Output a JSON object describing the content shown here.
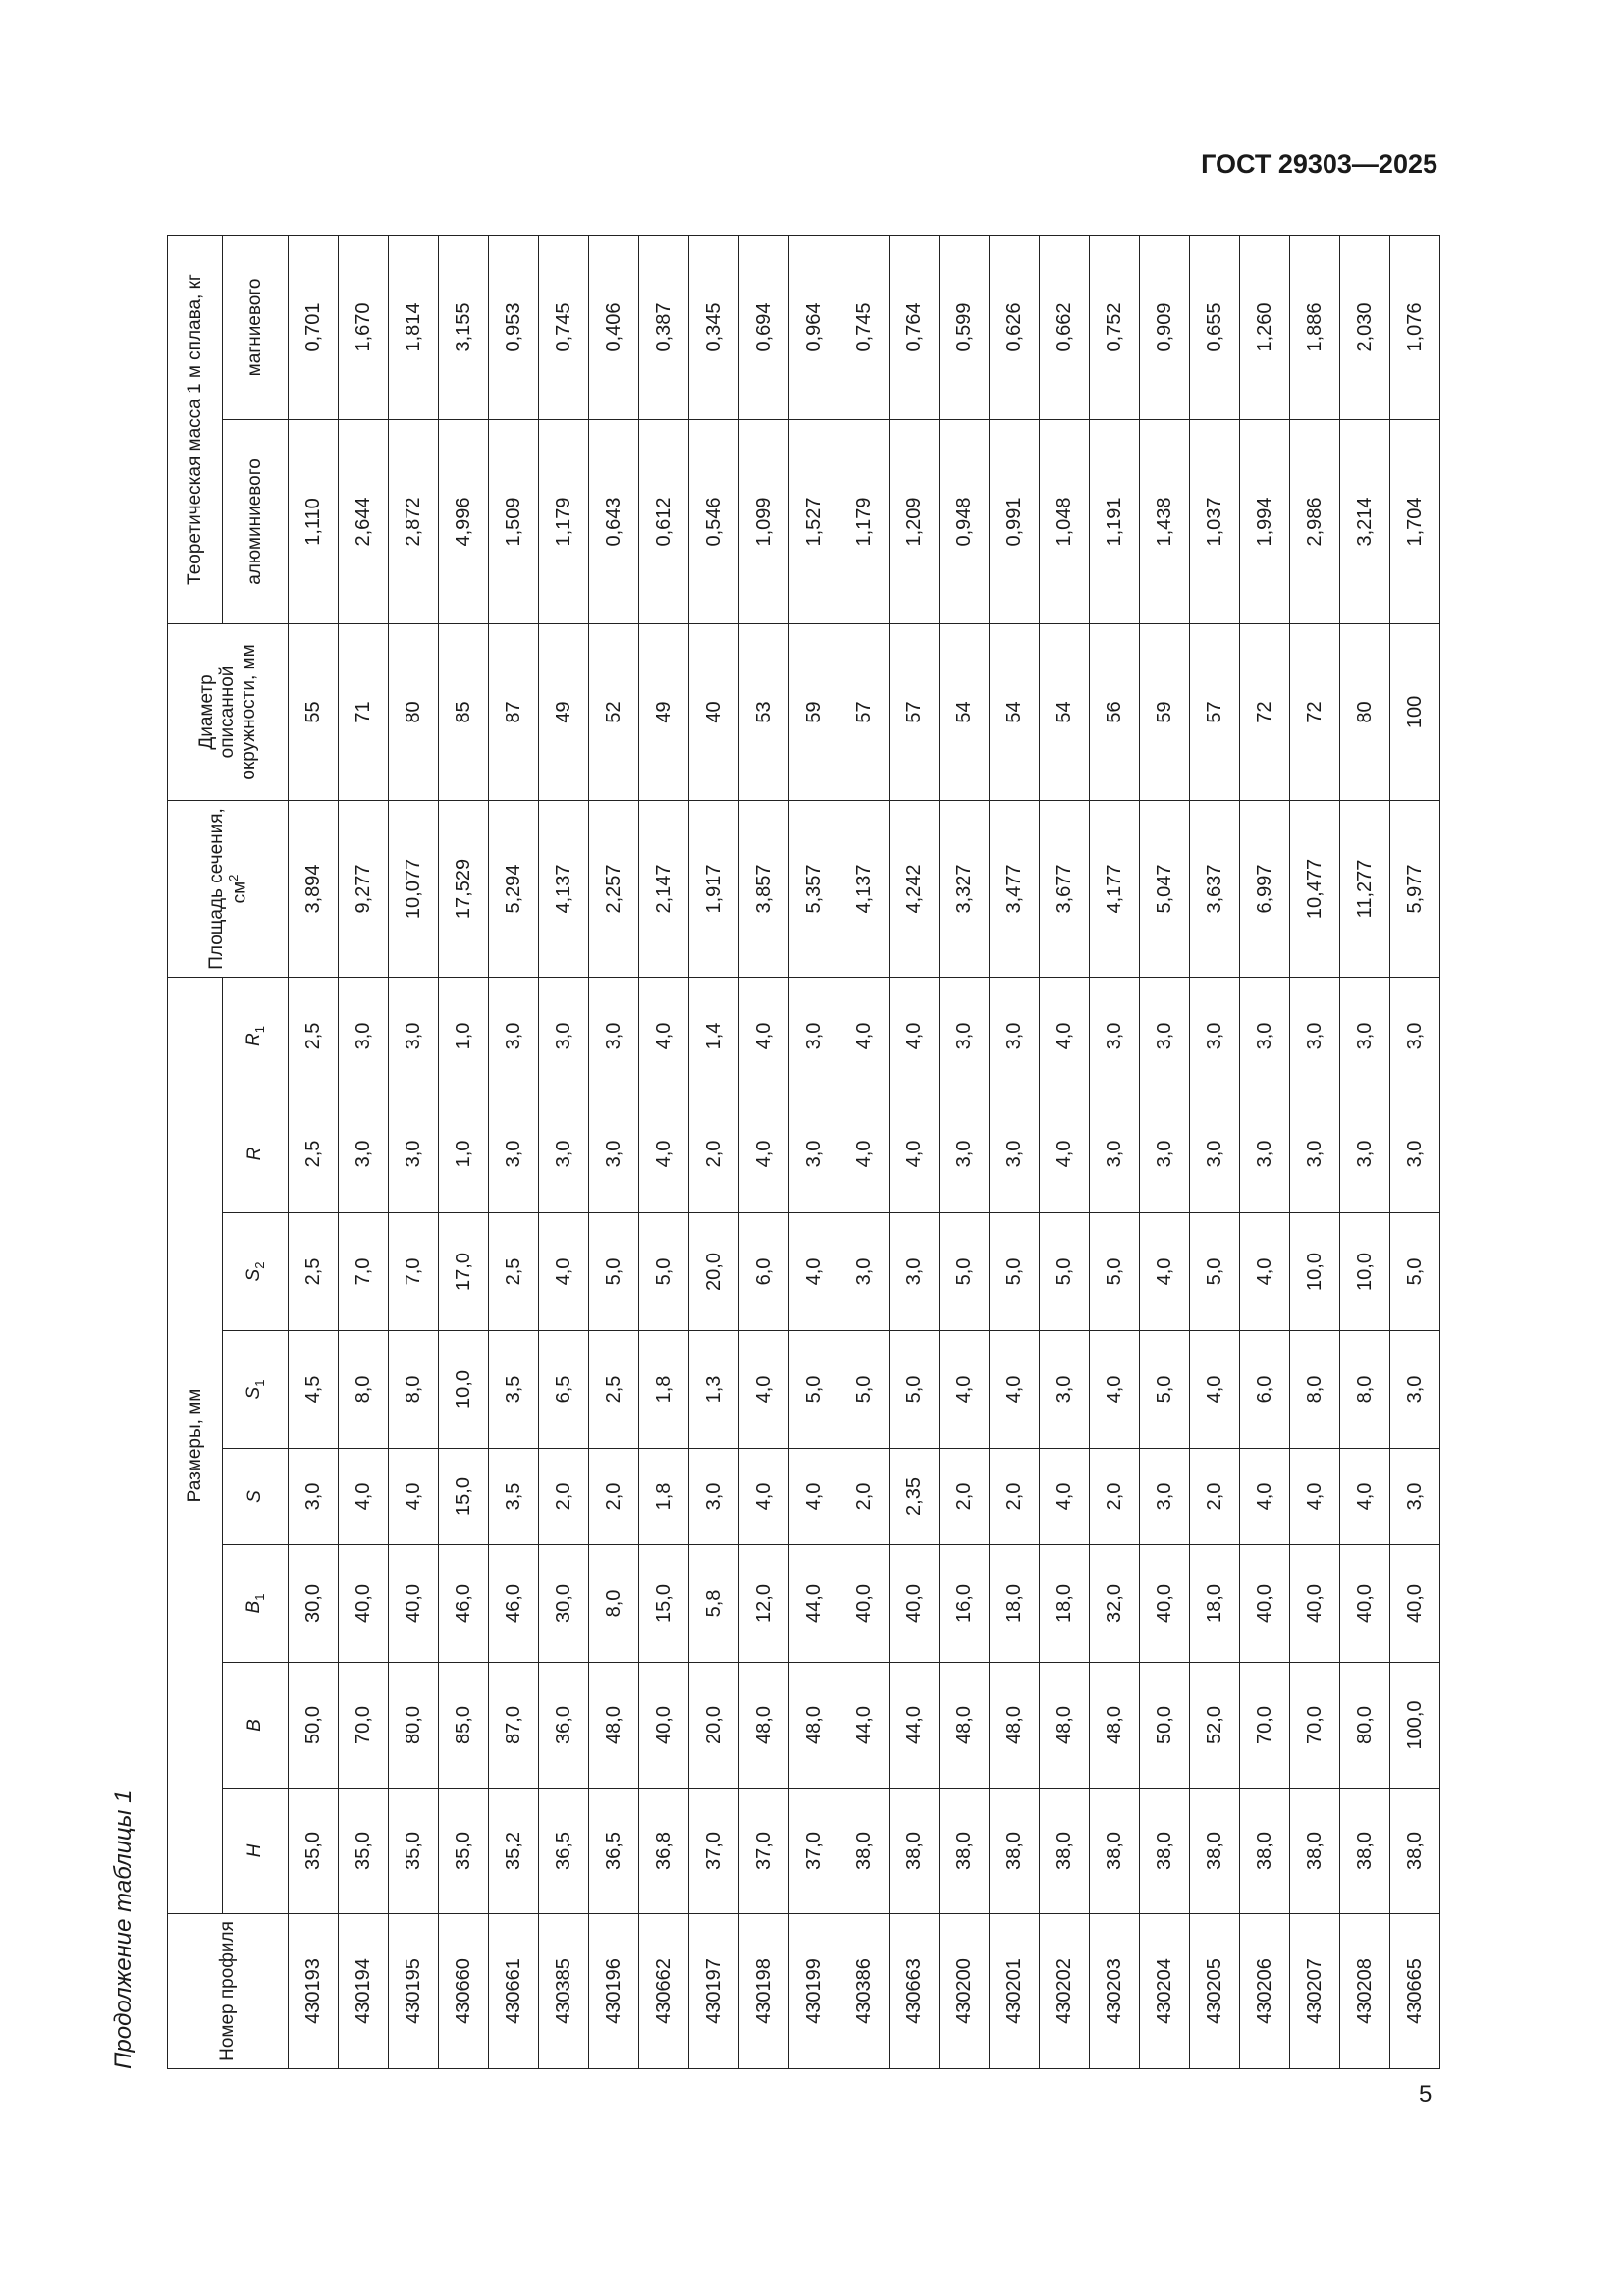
{
  "header": {
    "standard": "ГОСТ 29303—2025"
  },
  "caption": "Продолжение таблицы 1",
  "table": {
    "columns": {
      "profile": "Номер профиля",
      "dimensions": "Размеры, мм",
      "dims": [
        {
          "symbol": "H"
        },
        {
          "symbol": "B"
        },
        {
          "symbol": "B",
          "sub": "1"
        },
        {
          "symbol": "S"
        },
        {
          "symbol": "S",
          "sub": "1"
        },
        {
          "symbol": "S",
          "sub": "2"
        },
        {
          "symbol": "R"
        },
        {
          "symbol": "R",
          "sub": "1"
        }
      ],
      "area": {
        "text": "Площадь сечения, см",
        "sup": "2"
      },
      "diameter": "Диаметр описанной окружности, мм",
      "mass": "Теоретическая масса 1 м сплава, кг",
      "aluminum": "алюминиевого",
      "magnesium": "магниевого"
    },
    "rows": [
      [
        "430193",
        "35,0",
        "50,0",
        "30,0",
        "3,0",
        "4,5",
        "2,5",
        "2,5",
        "2,5",
        "3,894",
        "55",
        "1,110",
        "0,701"
      ],
      [
        "430194",
        "35,0",
        "70,0",
        "40,0",
        "4,0",
        "8,0",
        "7,0",
        "3,0",
        "3,0",
        "9,277",
        "71",
        "2,644",
        "1,670"
      ],
      [
        "430195",
        "35,0",
        "80,0",
        "40,0",
        "4,0",
        "8,0",
        "7,0",
        "3,0",
        "3,0",
        "10,077",
        "80",
        "2,872",
        "1,814"
      ],
      [
        "430660",
        "35,0",
        "85,0",
        "46,0",
        "15,0",
        "10,0",
        "17,0",
        "1,0",
        "1,0",
        "17,529",
        "85",
        "4,996",
        "3,155"
      ],
      [
        "430661",
        "35,2",
        "87,0",
        "46,0",
        "3,5",
        "3,5",
        "2,5",
        "3,0",
        "3,0",
        "5,294",
        "87",
        "1,509",
        "0,953"
      ],
      [
        "430385",
        "36,5",
        "36,0",
        "30,0",
        "2,0",
        "6,5",
        "4,0",
        "3,0",
        "3,0",
        "4,137",
        "49",
        "1,179",
        "0,745"
      ],
      [
        "430196",
        "36,5",
        "48,0",
        "8,0",
        "2,0",
        "2,5",
        "5,0",
        "3,0",
        "3,0",
        "2,257",
        "52",
        "0,643",
        "0,406"
      ],
      [
        "430662",
        "36,8",
        "40,0",
        "15,0",
        "1,8",
        "1,8",
        "5,0",
        "4,0",
        "4,0",
        "2,147",
        "49",
        "0,612",
        "0,387"
      ],
      [
        "430197",
        "37,0",
        "20,0",
        "5,8",
        "3,0",
        "1,3",
        "20,0",
        "2,0",
        "1,4",
        "1,917",
        "40",
        "0,546",
        "0,345"
      ],
      [
        "430198",
        "37,0",
        "48,0",
        "12,0",
        "4,0",
        "4,0",
        "6,0",
        "4,0",
        "4,0",
        "3,857",
        "53",
        "1,099",
        "0,694"
      ],
      [
        "430199",
        "37,0",
        "48,0",
        "44,0",
        "4,0",
        "5,0",
        "4,0",
        "3,0",
        "3,0",
        "5,357",
        "59",
        "1,527",
        "0,964"
      ],
      [
        "430386",
        "38,0",
        "44,0",
        "40,0",
        "2,0",
        "5,0",
        "3,0",
        "4,0",
        "4,0",
        "4,137",
        "57",
        "1,179",
        "0,745"
      ],
      [
        "430663",
        "38,0",
        "44,0",
        "40,0",
        "2,35",
        "5,0",
        "3,0",
        "4,0",
        "4,0",
        "4,242",
        "57",
        "1,209",
        "0,764"
      ],
      [
        "430200",
        "38,0",
        "48,0",
        "16,0",
        "2,0",
        "4,0",
        "5,0",
        "3,0",
        "3,0",
        "3,327",
        "54",
        "0,948",
        "0,599"
      ],
      [
        "430201",
        "38,0",
        "48,0",
        "18,0",
        "2,0",
        "4,0",
        "5,0",
        "3,0",
        "3,0",
        "3,477",
        "54",
        "0,991",
        "0,626"
      ],
      [
        "430202",
        "38,0",
        "48,0",
        "18,0",
        "4,0",
        "3,0",
        "5,0",
        "4,0",
        "4,0",
        "3,677",
        "54",
        "1,048",
        "0,662"
      ],
      [
        "430203",
        "38,0",
        "48,0",
        "32,0",
        "2,0",
        "4,0",
        "5,0",
        "3,0",
        "3,0",
        "4,177",
        "56",
        "1,191",
        "0,752"
      ],
      [
        "430204",
        "38,0",
        "50,0",
        "40,0",
        "3,0",
        "5,0",
        "4,0",
        "3,0",
        "3,0",
        "5,047",
        "59",
        "1,438",
        "0,909"
      ],
      [
        "430205",
        "38,0",
        "52,0",
        "18,0",
        "2,0",
        "4,0",
        "5,0",
        "3,0",
        "3,0",
        "3,637",
        "57",
        "1,037",
        "0,655"
      ],
      [
        "430206",
        "38,0",
        "70,0",
        "40,0",
        "4,0",
        "6,0",
        "4,0",
        "3,0",
        "3,0",
        "6,997",
        "72",
        "1,994",
        "1,260"
      ],
      [
        "430207",
        "38,0",
        "70,0",
        "40,0",
        "4,0",
        "8,0",
        "10,0",
        "3,0",
        "3,0",
        "10,477",
        "72",
        "2,986",
        "1,886"
      ],
      [
        "430208",
        "38,0",
        "80,0",
        "40,0",
        "4,0",
        "8,0",
        "10,0",
        "3,0",
        "3,0",
        "11,277",
        "80",
        "3,214",
        "2,030"
      ],
      [
        "430665",
        "38,0",
        "100,0",
        "40,0",
        "3,0",
        "3,0",
        "5,0",
        "3,0",
        "3,0",
        "5,977",
        "100",
        "1,704",
        "1,076"
      ]
    ]
  },
  "page_number": "5"
}
